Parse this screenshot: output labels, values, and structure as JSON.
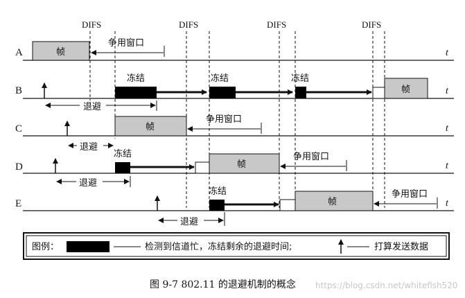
{
  "difs_labels": [
    "DIFS",
    "DIFS",
    "DIFS",
    "DIFS"
  ],
  "time_symbol": "t",
  "stations": [
    "A",
    "B",
    "C",
    "D",
    "E"
  ],
  "labels": {
    "frame": "帧",
    "contention_window": "争用窗口",
    "freeze": "冻结",
    "backoff": "退避"
  },
  "legend": {
    "title": "图例：",
    "busy_text": "检测到信道忙，冻结剩余的退避时间;",
    "arrow_text": "打算发送数据"
  },
  "caption": "图 9-7   802.11 的退避机制的概念",
  "watermark": "https://blog.csdn.net/whitefish520",
  "colors": {
    "frame_fill": "#c8c8c8",
    "busy_fill": "#000000",
    "line": "#111111"
  }
}
